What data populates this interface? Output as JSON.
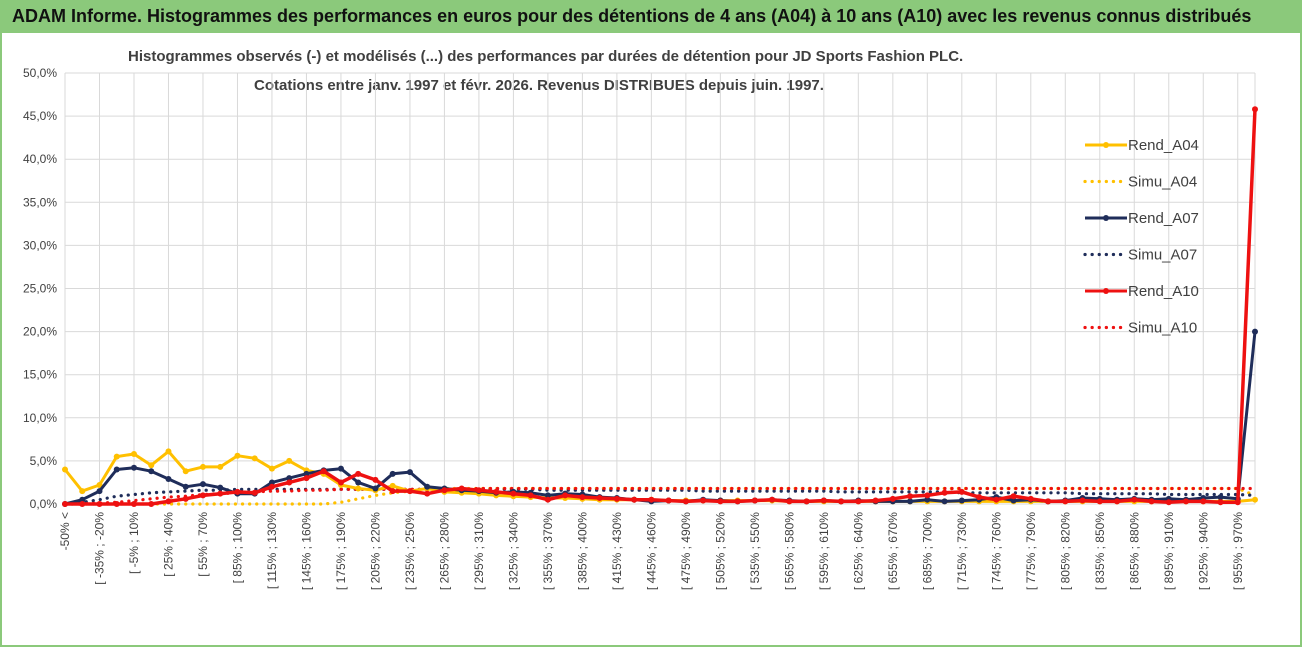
{
  "header": {
    "title": "ADAM Informe. Histogrammes des performances en euros pour des détentions de 4 ans (A04) à 10 ans (A10) avec les revenus connus distribués"
  },
  "chart_data": {
    "type": "line",
    "title_line1": "Histogrammes observés (-) et modélisés (...) des performances par durées de détention pour JD Sports Fashion PLC.",
    "title_line2": "Cotations entre janv. 1997 et févr.  2026. Revenus DISTRIBUES depuis juin. 1997.",
    "ylim": [
      0,
      50
    ],
    "y_ticks": [
      "0,0%",
      "5,0%",
      "10,0%",
      "15,0%",
      "20,0%",
      "25,0%",
      "30,0%",
      "35,0%",
      "40,0%",
      "45,0%",
      "50,0%"
    ],
    "x_tick_labels": [
      "-50% <",
      "[ -35% ; -20%",
      "[ -5% ; 10%",
      "[ 25% ; 40%",
      "[ 55% ; 70%",
      "[ 85% ; 100%",
      "[ 115% ; 130%",
      "[ 145% ; 160%",
      "[ 175% ; 190%",
      "[ 205% ; 220%",
      "[ 235% ; 250%",
      "[ 265% ; 280%",
      "[ 295% ; 310%",
      "[ 325% ; 340%",
      "[ 355% ; 370%",
      "[ 385% ; 400%",
      "[ 415% ; 430%",
      "[ 445% ; 460%",
      "[ 475% ; 490%",
      "[ 505% ; 520%",
      "[ 535% ; 550%",
      "[ 565% ; 580%",
      "[ 595% ; 610%",
      "[ 625% ; 640%",
      "[ 655% ; 670%",
      "[ 685% ; 700%",
      "[ 715% ; 730%",
      "[ 745% ; 760%",
      "[ 775% ; 790%",
      "[ 805% ; 820%",
      "[ 835% ; 850%",
      "[ 865% ; 880%",
      "[ 895% ; 910%",
      "[ 925% ; 940%",
      "[ 955% ; 970%"
    ],
    "x_tick_every": 2,
    "n_points": 70,
    "legend_position": "right",
    "series": [
      {
        "name": "Rend_A04",
        "color": "#ffc000",
        "style": "solid",
        "marker": true,
        "values": [
          4.0,
          1.5,
          2.2,
          5.5,
          5.8,
          4.5,
          6.1,
          3.8,
          4.3,
          4.3,
          5.6,
          5.3,
          4.1,
          5.0,
          3.9,
          3.5,
          2.2,
          1.8,
          1.6,
          2.1,
          1.5,
          1.8,
          1.4,
          1.3,
          1.2,
          1.0,
          0.9,
          0.8,
          0.7,
          0.7,
          0.6,
          0.5,
          0.5,
          0.5,
          0.5,
          0.4,
          0.4,
          0.4,
          0.4,
          0.4,
          0.4,
          0.4,
          0.3,
          0.3,
          0.3,
          0.3,
          0.3,
          0.3,
          0.3,
          0.3,
          0.3,
          0.3,
          0.3,
          0.3,
          0.3,
          0.3,
          0.3,
          0.3,
          0.3,
          0.3,
          0.3,
          0.3,
          0.3,
          0.3,
          0.3,
          0.3,
          0.3,
          0.3,
          0.3,
          0.5
        ]
      },
      {
        "name": "Simu_A04",
        "color": "#ffc000",
        "style": "dotted",
        "marker": false,
        "values": [
          0.0,
          0.0,
          0.0,
          0.0,
          0.0,
          0.0,
          0.0,
          0.0,
          0.0,
          0.0,
          0.0,
          0.0,
          0.0,
          0.0,
          0.0,
          0.0,
          0.2,
          0.6,
          1.0,
          1.3,
          1.5,
          1.7,
          1.8,
          1.8,
          1.8,
          1.8,
          1.8,
          1.8,
          1.8,
          1.8,
          1.8,
          1.8,
          1.8,
          1.8,
          1.8,
          1.8,
          1.8,
          1.8,
          1.8,
          1.8,
          1.8,
          1.8,
          1.8,
          1.8,
          1.8,
          1.8,
          1.8,
          1.8,
          1.8,
          1.8,
          1.8,
          1.8,
          1.8,
          1.8,
          1.8,
          1.8,
          1.8,
          1.8,
          1.8,
          1.8,
          1.8,
          1.8,
          1.8,
          1.8,
          1.8,
          1.8,
          1.8,
          1.8,
          1.8,
          1.0
        ]
      },
      {
        "name": "Rend_A07",
        "color": "#1f2d5a",
        "style": "solid",
        "marker": true,
        "values": [
          0.0,
          0.5,
          1.5,
          4.0,
          4.2,
          3.8,
          2.9,
          2.0,
          2.3,
          1.9,
          1.2,
          1.2,
          2.5,
          3.0,
          3.5,
          3.9,
          4.1,
          2.5,
          1.8,
          3.5,
          3.7,
          2.0,
          1.8,
          1.6,
          1.5,
          1.3,
          1.4,
          1.3,
          1.0,
          1.2,
          1.1,
          0.8,
          0.7,
          0.5,
          0.3,
          0.4,
          0.3,
          0.5,
          0.4,
          0.3,
          0.4,
          0.5,
          0.4,
          0.3,
          0.4,
          0.3,
          0.4,
          0.3,
          0.3,
          0.3,
          0.5,
          0.3,
          0.4,
          0.5,
          0.8,
          0.4,
          0.5,
          0.3,
          0.4,
          0.7,
          0.6,
          0.5,
          0.6,
          0.5,
          0.6,
          0.5,
          0.7,
          0.8,
          0.6,
          20.0
        ]
      },
      {
        "name": "Simu_A07",
        "color": "#1f2d5a",
        "style": "dotted",
        "marker": false,
        "values": [
          0.0,
          0.2,
          0.5,
          0.9,
          1.1,
          1.3,
          1.4,
          1.5,
          1.6,
          1.6,
          1.7,
          1.7,
          1.7,
          1.7,
          1.7,
          1.7,
          1.7,
          1.7,
          1.7,
          1.7,
          1.7,
          1.7,
          1.7,
          1.7,
          1.7,
          1.7,
          1.7,
          1.7,
          1.6,
          1.6,
          1.6,
          1.6,
          1.6,
          1.6,
          1.6,
          1.6,
          1.6,
          1.5,
          1.5,
          1.5,
          1.5,
          1.5,
          1.5,
          1.5,
          1.5,
          1.4,
          1.4,
          1.4,
          1.4,
          1.4,
          1.4,
          1.4,
          1.3,
          1.3,
          1.3,
          1.3,
          1.3,
          1.3,
          1.3,
          1.2,
          1.2,
          1.2,
          1.2,
          1.2,
          1.1,
          1.1,
          1.1,
          1.1,
          1.1,
          1.0
        ]
      },
      {
        "name": "Rend_A10",
        "color": "#ee1111",
        "style": "solid",
        "marker": true,
        "values": [
          0.0,
          0.0,
          0.0,
          0.0,
          0.0,
          0.0,
          0.3,
          0.6,
          1.0,
          1.2,
          1.4,
          1.3,
          2.0,
          2.5,
          3.0,
          3.8,
          2.5,
          3.5,
          2.8,
          1.5,
          1.5,
          1.2,
          1.6,
          1.8,
          1.6,
          1.4,
          1.2,
          1.0,
          0.5,
          1.0,
          0.8,
          0.7,
          0.6,
          0.5,
          0.5,
          0.4,
          0.3,
          0.4,
          0.3,
          0.3,
          0.4,
          0.5,
          0.3,
          0.3,
          0.4,
          0.3,
          0.3,
          0.4,
          0.6,
          0.9,
          1.0,
          1.3,
          1.4,
          0.8,
          0.5,
          0.9,
          0.6,
          0.3,
          0.3,
          0.4,
          0.3,
          0.3,
          0.5,
          0.3,
          0.2,
          0.3,
          0.3,
          0.2,
          0.2,
          45.8
        ]
      },
      {
        "name": "Simu_A10",
        "color": "#ee1111",
        "style": "dotted",
        "marker": false,
        "values": [
          0.0,
          0.0,
          0.1,
          0.2,
          0.4,
          0.6,
          0.8,
          0.9,
          1.1,
          1.2,
          1.3,
          1.4,
          1.5,
          1.5,
          1.6,
          1.6,
          1.7,
          1.7,
          1.7,
          1.7,
          1.7,
          1.7,
          1.7,
          1.7,
          1.8,
          1.8,
          1.8,
          1.8,
          1.8,
          1.8,
          1.8,
          1.8,
          1.8,
          1.8,
          1.8,
          1.8,
          1.8,
          1.8,
          1.8,
          1.8,
          1.8,
          1.8,
          1.8,
          1.8,
          1.8,
          1.8,
          1.8,
          1.8,
          1.8,
          1.8,
          1.8,
          1.8,
          1.8,
          1.8,
          1.8,
          1.8,
          1.8,
          1.8,
          1.8,
          1.8,
          1.8,
          1.8,
          1.8,
          1.8,
          1.8,
          1.8,
          1.8,
          1.8,
          1.8,
          1.8
        ]
      }
    ]
  }
}
